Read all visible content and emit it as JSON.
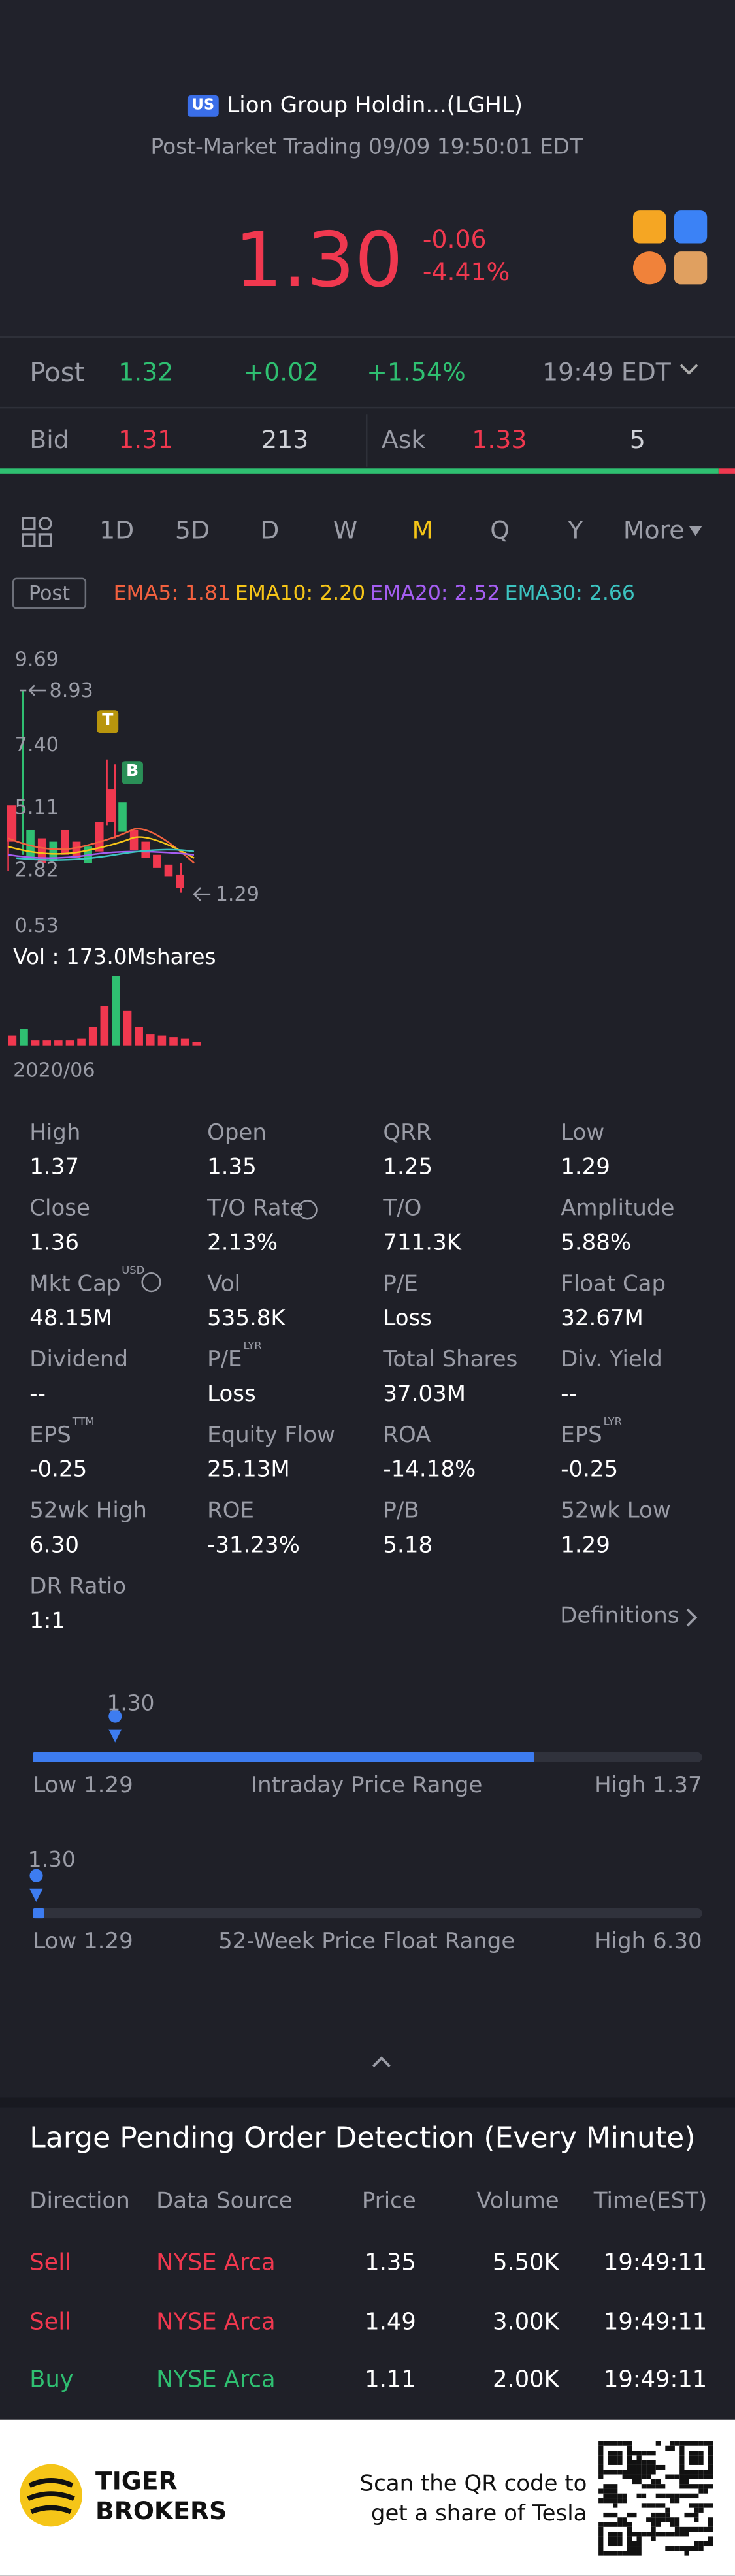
{
  "header": {
    "badge": "US",
    "name": "Lion Group Holdin...(LGHL)",
    "status": "Post-Market Trading 09/09 19:50:01 EDT"
  },
  "quote": {
    "price": "1.30",
    "change": "-0.06",
    "change_pct": "-4.41%"
  },
  "post": {
    "label": "Post",
    "price": "1.32",
    "change": "+0.02",
    "change_pct": "+1.54%",
    "time": "19:49 EDT"
  },
  "bid": {
    "label": "Bid",
    "price": "1.31",
    "size": "213"
  },
  "ask": {
    "label": "Ask",
    "price": "1.33",
    "size": "5"
  },
  "tabs": {
    "items": [
      "1D",
      "5D",
      "D",
      "W",
      "M",
      "Q",
      "Y",
      "More"
    ],
    "active": 4
  },
  "indicators": {
    "mode": "Post",
    "ema": [
      {
        "text": "EMA5: 1.81",
        "color": "#f2613f"
      },
      {
        "text": "EMA10: 2.20",
        "color": "#f5c518"
      },
      {
        "text": "EMA20: 2.52",
        "color": "#a55ef2"
      },
      {
        "text": "EMA30: 2.66",
        "color": "#3cc3c0"
      }
    ]
  },
  "kline": {
    "labels": [
      "9.69",
      "8.93",
      "7.40",
      "5.11",
      "2.82",
      "0.53",
      "1.29"
    ],
    "markers": [
      "T",
      "B"
    ],
    "volume": "Vol  : 173.0Mshares",
    "date": "2020/06"
  },
  "stats": [
    {
      "label": "High",
      "value": "1.37"
    },
    {
      "label": "Open",
      "value": "1.35"
    },
    {
      "label": "QRR",
      "value": "1.25"
    },
    {
      "label": "Low",
      "value": "1.29"
    },
    {
      "label": "Close",
      "value": "1.36"
    },
    {
      "label": "T/O Rate",
      "value": "2.13%"
    },
    {
      "label": "T/O",
      "value": "711.3K"
    },
    {
      "label": "Amplitude",
      "value": "5.88%"
    },
    {
      "label": "Mkt Cap",
      "sup": "USD",
      "value": "48.15M"
    },
    {
      "label": "Vol",
      "value": "535.8K"
    },
    {
      "label": "P/E",
      "value": "Loss"
    },
    {
      "label": "Float Cap",
      "value": "32.67M"
    },
    {
      "label": "Dividend",
      "value": "--"
    },
    {
      "label": "P/E",
      "sup": "LYR",
      "value": "Loss"
    },
    {
      "label": "Total Shares",
      "value": "37.03M"
    },
    {
      "label": "Div. Yield",
      "value": "--"
    },
    {
      "label": "EPS",
      "sup": "TTM",
      "value": "-0.25"
    },
    {
      "label": "Equity Flow",
      "value": "25.13M"
    },
    {
      "label": "ROA",
      "value": "-14.18%"
    },
    {
      "label": "EPS",
      "sup": "LYR",
      "value": "-0.25"
    },
    {
      "label": "52wk High",
      "value": "6.30"
    },
    {
      "label": "ROE",
      "value": "-31.23%"
    },
    {
      "label": "P/B",
      "value": "5.18"
    },
    {
      "label": "52wk Low",
      "value": "1.29"
    },
    {
      "label": "DR Ratio",
      "value": "1:1"
    }
  ],
  "definitions": "Definitions",
  "ranges": [
    {
      "current": "1.30",
      "low": "Low 1.29",
      "title": "Intraday Price Range",
      "high": "High 1.37"
    },
    {
      "current": "1.30",
      "low": "Low 1.29",
      "title": "52-Week Price Float Range",
      "high": "High 6.30"
    }
  ],
  "orders": {
    "title": "Large Pending Order Detection (Every Minute)",
    "headers": [
      "Direction",
      "Data Source",
      "Price",
      "Volume",
      "Time(EST)"
    ],
    "rows": [
      {
        "direction": "Sell",
        "source": "NYSE Arca",
        "price": "1.35",
        "volume": "5.50K",
        "time": "19:49:11",
        "color": "#f0384f"
      },
      {
        "direction": "Sell",
        "source": "NYSE Arca",
        "price": "1.49",
        "volume": "3.00K",
        "time": "19:49:11",
        "color": "#f0384f"
      },
      {
        "direction": "Buy",
        "source": "NYSE Arca",
        "price": "1.11",
        "volume": "2.00K",
        "time": "19:49:11",
        "color": "#2fbf71"
      }
    ]
  },
  "footer": {
    "brand": [
      "TIGER",
      "BROKERS"
    ],
    "scan": [
      "Scan the QR code to",
      "get a share of Tesla"
    ]
  }
}
